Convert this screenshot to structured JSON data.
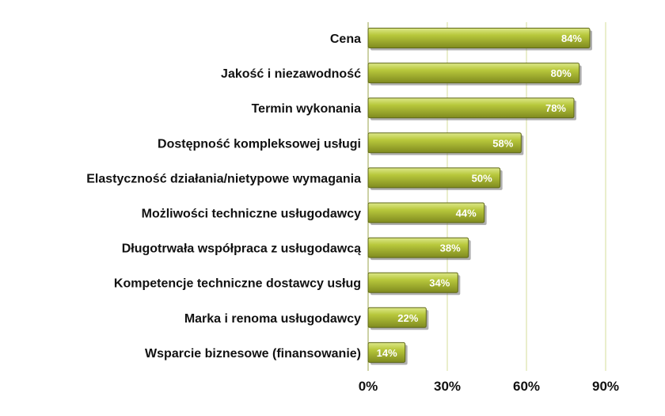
{
  "chart_data": {
    "type": "bar",
    "orientation": "horizontal",
    "categories": [
      "Cena",
      "Jakość i niezawodność",
      "Termin wykonania",
      "Dostępność kompleksowej usługi",
      "Elastyczność działania/nietypowe wymagania",
      "Możliwości techniczne usługodawcy",
      "Długotrwała współpraca z usługodawcą",
      "Kompetencje techniczne dostawcy usług",
      "Marka i renoma usługodawcy",
      "Wsparcie biznesowe (finansowanie)"
    ],
    "values": [
      84,
      80,
      78,
      58,
      50,
      44,
      38,
      34,
      22,
      14
    ],
    "value_labels": [
      "84%",
      "80%",
      "78%",
      "58%",
      "50%",
      "44%",
      "38%",
      "34%",
      "22%",
      "14%"
    ],
    "xlim": [
      0,
      90
    ],
    "xticks": [
      0,
      30,
      60,
      90
    ],
    "xtick_labels": [
      "0%",
      "30%",
      "60%",
      "90%"
    ],
    "grid": "vertical",
    "legend": "none",
    "title": "",
    "xlabel": "",
    "ylabel": "",
    "colors": {
      "bar_light": "#c5d44e",
      "bar_dark": "#7f8a1f",
      "bar_edge": "#5e6717",
      "shadow": "#6f6f6f",
      "grid": "#d6dc9a"
    }
  }
}
